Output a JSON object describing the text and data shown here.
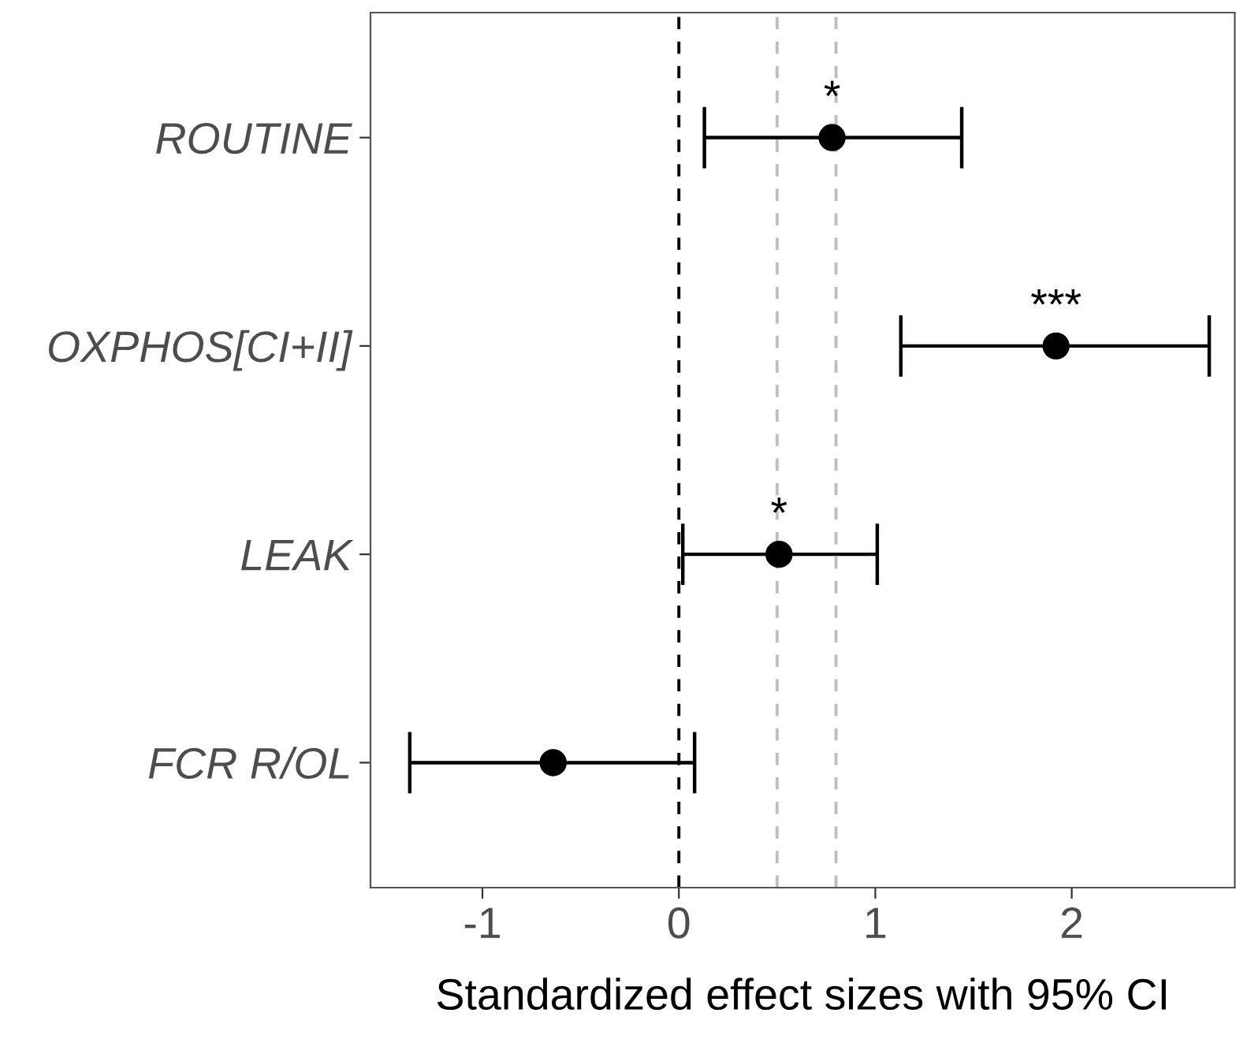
{
  "chart_data": {
    "type": "scatter",
    "orientation": "horizontal",
    "xlabel": "Standardized effect sizes with 95% CI",
    "categories": [
      "ROUTINE",
      "OXPHOS[CI+II]",
      "LEAK",
      "FCR R/OL"
    ],
    "values": [
      0.78,
      1.92,
      0.51,
      -0.64
    ],
    "errors": [
      [
        0.13,
        1.44
      ],
      [
        1.13,
        2.7
      ],
      [
        0.02,
        1.01
      ],
      [
        -1.37,
        0.08
      ]
    ],
    "color": "#000000",
    "marker": "circle",
    "xlim": [
      -1.57,
      2.83
    ],
    "xticks": [
      -1,
      0,
      1,
      2
    ],
    "grid": false,
    "ref_lines": [
      {
        "axis": "x",
        "value": 0,
        "color": "#000000",
        "line_style": "dashed"
      },
      {
        "axis": "x",
        "value": 0.5,
        "color": "#bebebe",
        "line_style": "dashed"
      },
      {
        "axis": "x",
        "value": 0.8,
        "color": "#bebebe",
        "line_style": "dashed"
      }
    ],
    "annotations": [
      {
        "text": "*",
        "x": 0.78,
        "y": "ROUTINE"
      },
      {
        "text": "***",
        "x": 1.92,
        "y": "OXPHOS[CI+II]"
      },
      {
        "text": "*",
        "x": 0.51,
        "y": "LEAK"
      }
    ]
  }
}
